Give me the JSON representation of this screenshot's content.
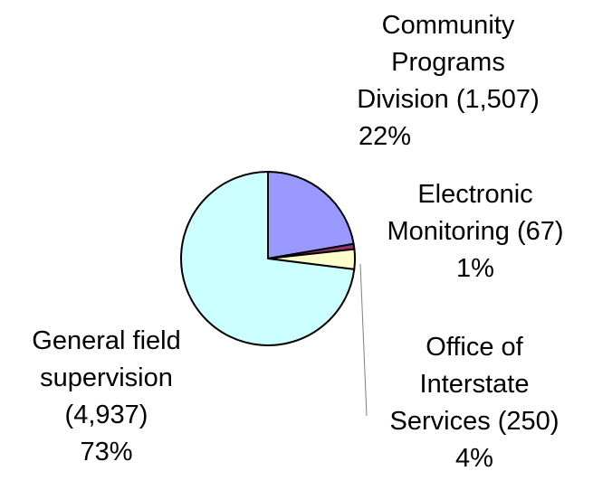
{
  "chart_data": {
    "type": "pie",
    "title": "",
    "slices": [
      {
        "name": "Community Programs Division",
        "value": 1507,
        "value_text": "(1,507)",
        "percent_text": "22%",
        "color": "#9999ff",
        "label_lines": [
          "Community",
          "Programs",
          "Division (1,507)",
          "22%"
        ]
      },
      {
        "name": "Electronic Monitoring",
        "value": 67,
        "value_text": "(67)",
        "percent_text": "1%",
        "color": "#993366",
        "label_lines": [
          "Electronic",
          "Monitoring (67)",
          "1%"
        ]
      },
      {
        "name": "Office of Interstate Services",
        "value": 250,
        "value_text": "(250)",
        "percent_text": "4%",
        "color": "#ffffcc",
        "label_lines": [
          "Office of",
          "Interstate",
          "Services (250)",
          "4%"
        ]
      },
      {
        "name": "General field supervision",
        "value": 4937,
        "value_text": "(4,937)",
        "percent_text": "73%",
        "color": "#ccffff",
        "label_lines": [
          "General field",
          "supervision",
          "(4,937)",
          "73%"
        ]
      }
    ],
    "start_angle": "12 o'clock",
    "direction": "clockwise",
    "legend": "none",
    "outline_color": "#000000"
  }
}
